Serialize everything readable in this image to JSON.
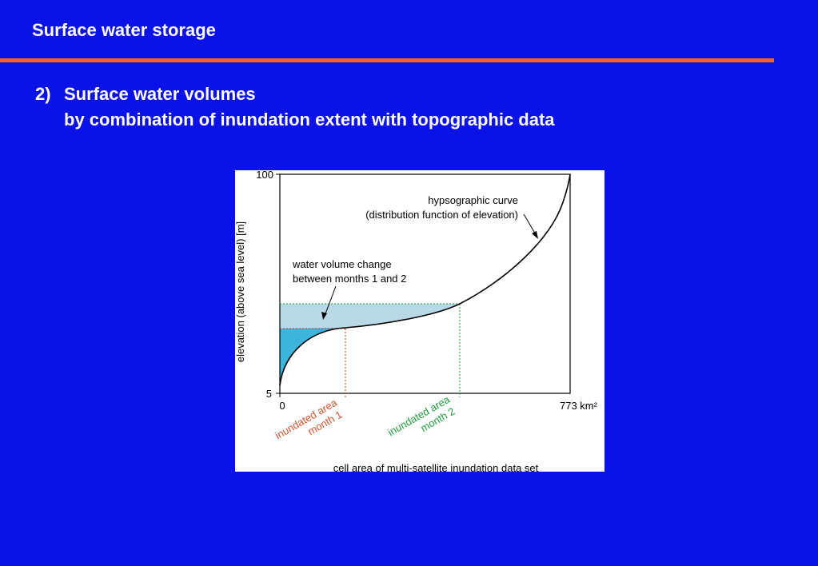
{
  "header": {
    "title": "Surface water storage"
  },
  "heading": {
    "number": "2)",
    "lines": [
      "Surface water volumes",
      "by combination of inundation extent with topographic data"
    ]
  },
  "figure": {
    "y_axis_label": "elevation (above sea level) [m]",
    "y_max": "100",
    "y_min": "5",
    "x_min": "0",
    "x_max": "773 km²",
    "curve_label": [
      "hypsographic curve",
      "(distribution function of elevation)"
    ],
    "volume_label": [
      "water volume change",
      "between months 1 and 2"
    ],
    "area_1": [
      "inundated area",
      "month 1"
    ],
    "area_2": [
      "inundated area",
      "month 2"
    ],
    "x_axis_label": "cell area of multi-satellite inundation data set"
  }
}
